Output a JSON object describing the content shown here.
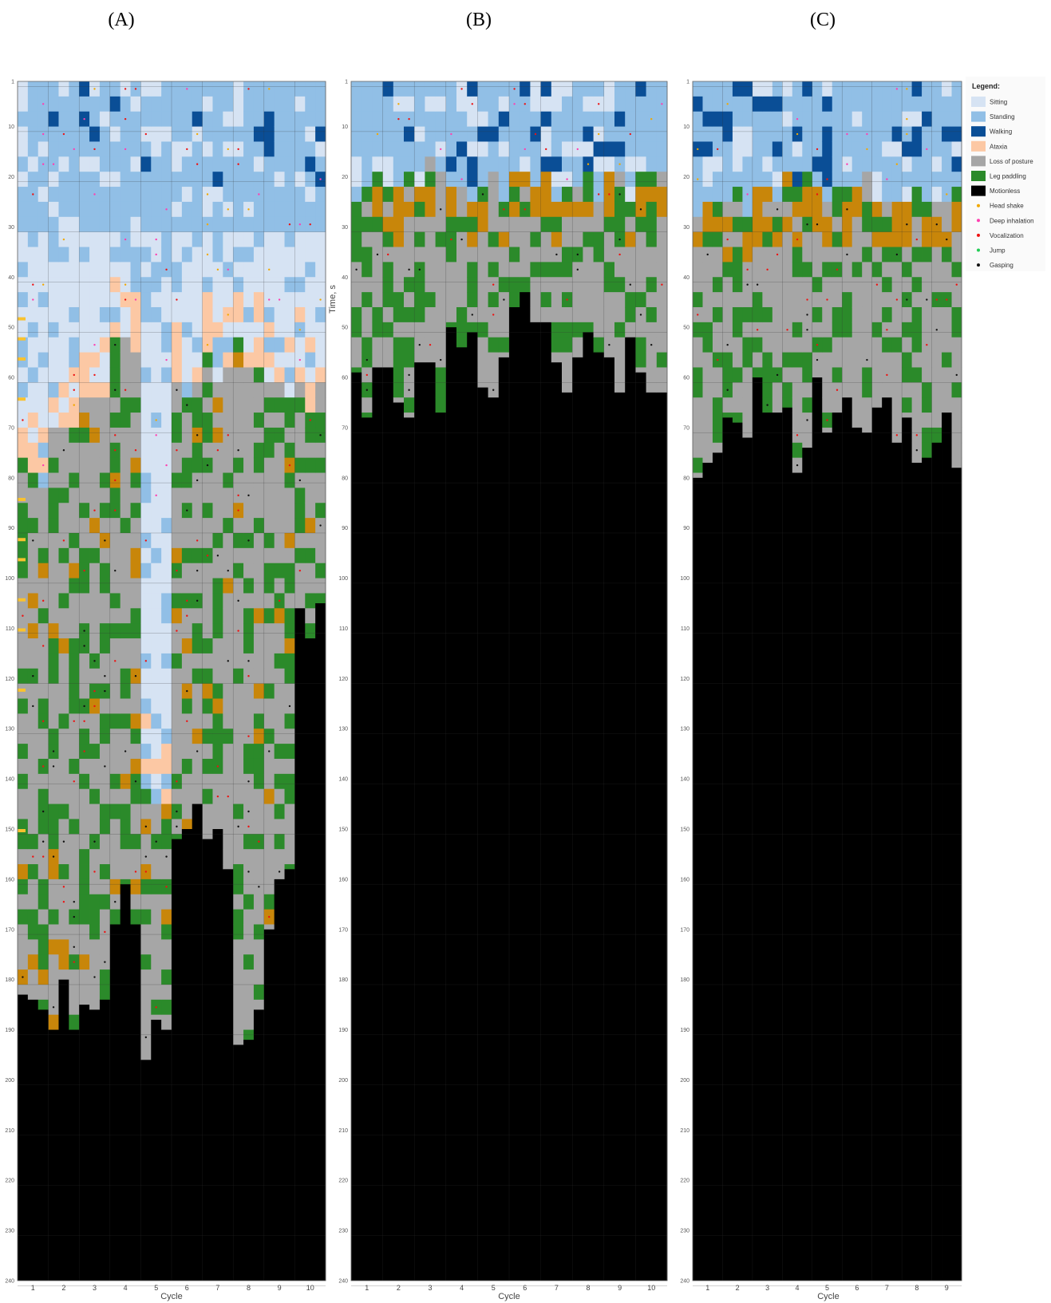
{
  "colors": {
    "sitting": "#d6e3f3",
    "standing": "#91bfe6",
    "walking": "#0a4e96",
    "ataxia": "#fcc8a4",
    "loss_of_posture": "#a6a6a6",
    "leg_paddling": "#2b8a2a",
    "motionless": "#000000",
    "head_shake": "#f2a800",
    "deep_inhalation": "#ff3fb0",
    "vocalization": "#ee1111",
    "jump": "#22cc55",
    "gasping": "#111111",
    "yellow_bar": "#f9c22e",
    "bracket": "#c8860a"
  },
  "chart_data": [
    {
      "panel": "(A)",
      "type": "heatmap",
      "xlabel": "Cycle",
      "ylabel": "",
      "categories": [
        "1",
        "2",
        "3",
        "4",
        "5",
        "6",
        "7",
        "8",
        "9",
        "10"
      ],
      "ylim": [
        1,
        240
      ],
      "yticks": [
        1,
        10,
        20,
        30,
        40,
        50,
        60,
        70,
        80,
        90,
        100,
        110,
        120,
        130,
        140,
        150,
        160,
        170,
        180,
        190,
        200,
        210,
        220,
        230,
        240
      ],
      "motionless_onset_s": [
        181,
        184,
        190,
        162,
        190,
        150,
        153,
        188,
        165,
        110
      ],
      "loss_of_posture_onset_s": [
        78,
        72,
        64,
        54,
        144,
        58,
        55,
        56,
        63,
        61
      ]
    },
    {
      "panel": "(B)",
      "type": "heatmap",
      "xlabel": "Cycle",
      "ylabel": "Time, s",
      "categories": [
        "1",
        "2",
        "3",
        "4",
        "5",
        "6",
        "7",
        "8",
        "9",
        "10"
      ],
      "ylim": [
        1,
        240
      ],
      "yticks": [
        1,
        10,
        20,
        30,
        40,
        50,
        60,
        70,
        80,
        90,
        100,
        110,
        120,
        130,
        140,
        150,
        160,
        170,
        180,
        190,
        200,
        210,
        220,
        230,
        240
      ],
      "motionless_onset_s": [
        62,
        62,
        64,
        56,
        62,
        46,
        56,
        52,
        58,
        66
      ],
      "loss_of_posture_onset_s": [
        20,
        21,
        19,
        20,
        20,
        20,
        21,
        20,
        21,
        20
      ]
    },
    {
      "panel": "(C)",
      "type": "heatmap",
      "xlabel": "Cycle",
      "ylabel": "",
      "categories": [
        "1",
        "2",
        "3",
        "4",
        "5",
        "6",
        "7",
        "8",
        "9"
      ],
      "ylim": [
        1,
        240
      ],
      "yticks": [
        1,
        10,
        20,
        30,
        40,
        50,
        60,
        70,
        80,
        90,
        100,
        110,
        120,
        130,
        140,
        150,
        160,
        170,
        180,
        190,
        200,
        210,
        220,
        230,
        240
      ],
      "motionless_onset_s": [
        74,
        70,
        64,
        72,
        64,
        68,
        70,
        72,
        74
      ],
      "loss_of_posture_onset_s": [
        24,
        22,
        21,
        21,
        22,
        22,
        21,
        22,
        21
      ]
    }
  ],
  "legend": {
    "title": "Legend:",
    "items": [
      {
        "label": "Sitting",
        "kind": "box",
        "color_key": "sitting"
      },
      {
        "label": "Standing",
        "kind": "box",
        "color_key": "standing"
      },
      {
        "label": "Walking",
        "kind": "box",
        "color_key": "walking"
      },
      {
        "label": "Ataxia",
        "kind": "box",
        "color_key": "ataxia"
      },
      {
        "label": "Loss of posture",
        "kind": "box",
        "color_key": "loss_of_posture"
      },
      {
        "label": "Leg paddling",
        "kind": "box",
        "color_key": "leg_paddling"
      },
      {
        "label": "Motionless",
        "kind": "box",
        "color_key": "motionless"
      },
      {
        "label": "Head shake",
        "kind": "dot",
        "color_key": "head_shake"
      },
      {
        "label": "Deep inhalation",
        "kind": "dot",
        "color_key": "deep_inhalation"
      },
      {
        "label": "Vocalization",
        "kind": "dot",
        "color_key": "vocalization"
      },
      {
        "label": "Jump",
        "kind": "dot",
        "color_key": "jump"
      },
      {
        "label": "Gasping",
        "kind": "dot",
        "color_key": "gasping"
      }
    ]
  }
}
